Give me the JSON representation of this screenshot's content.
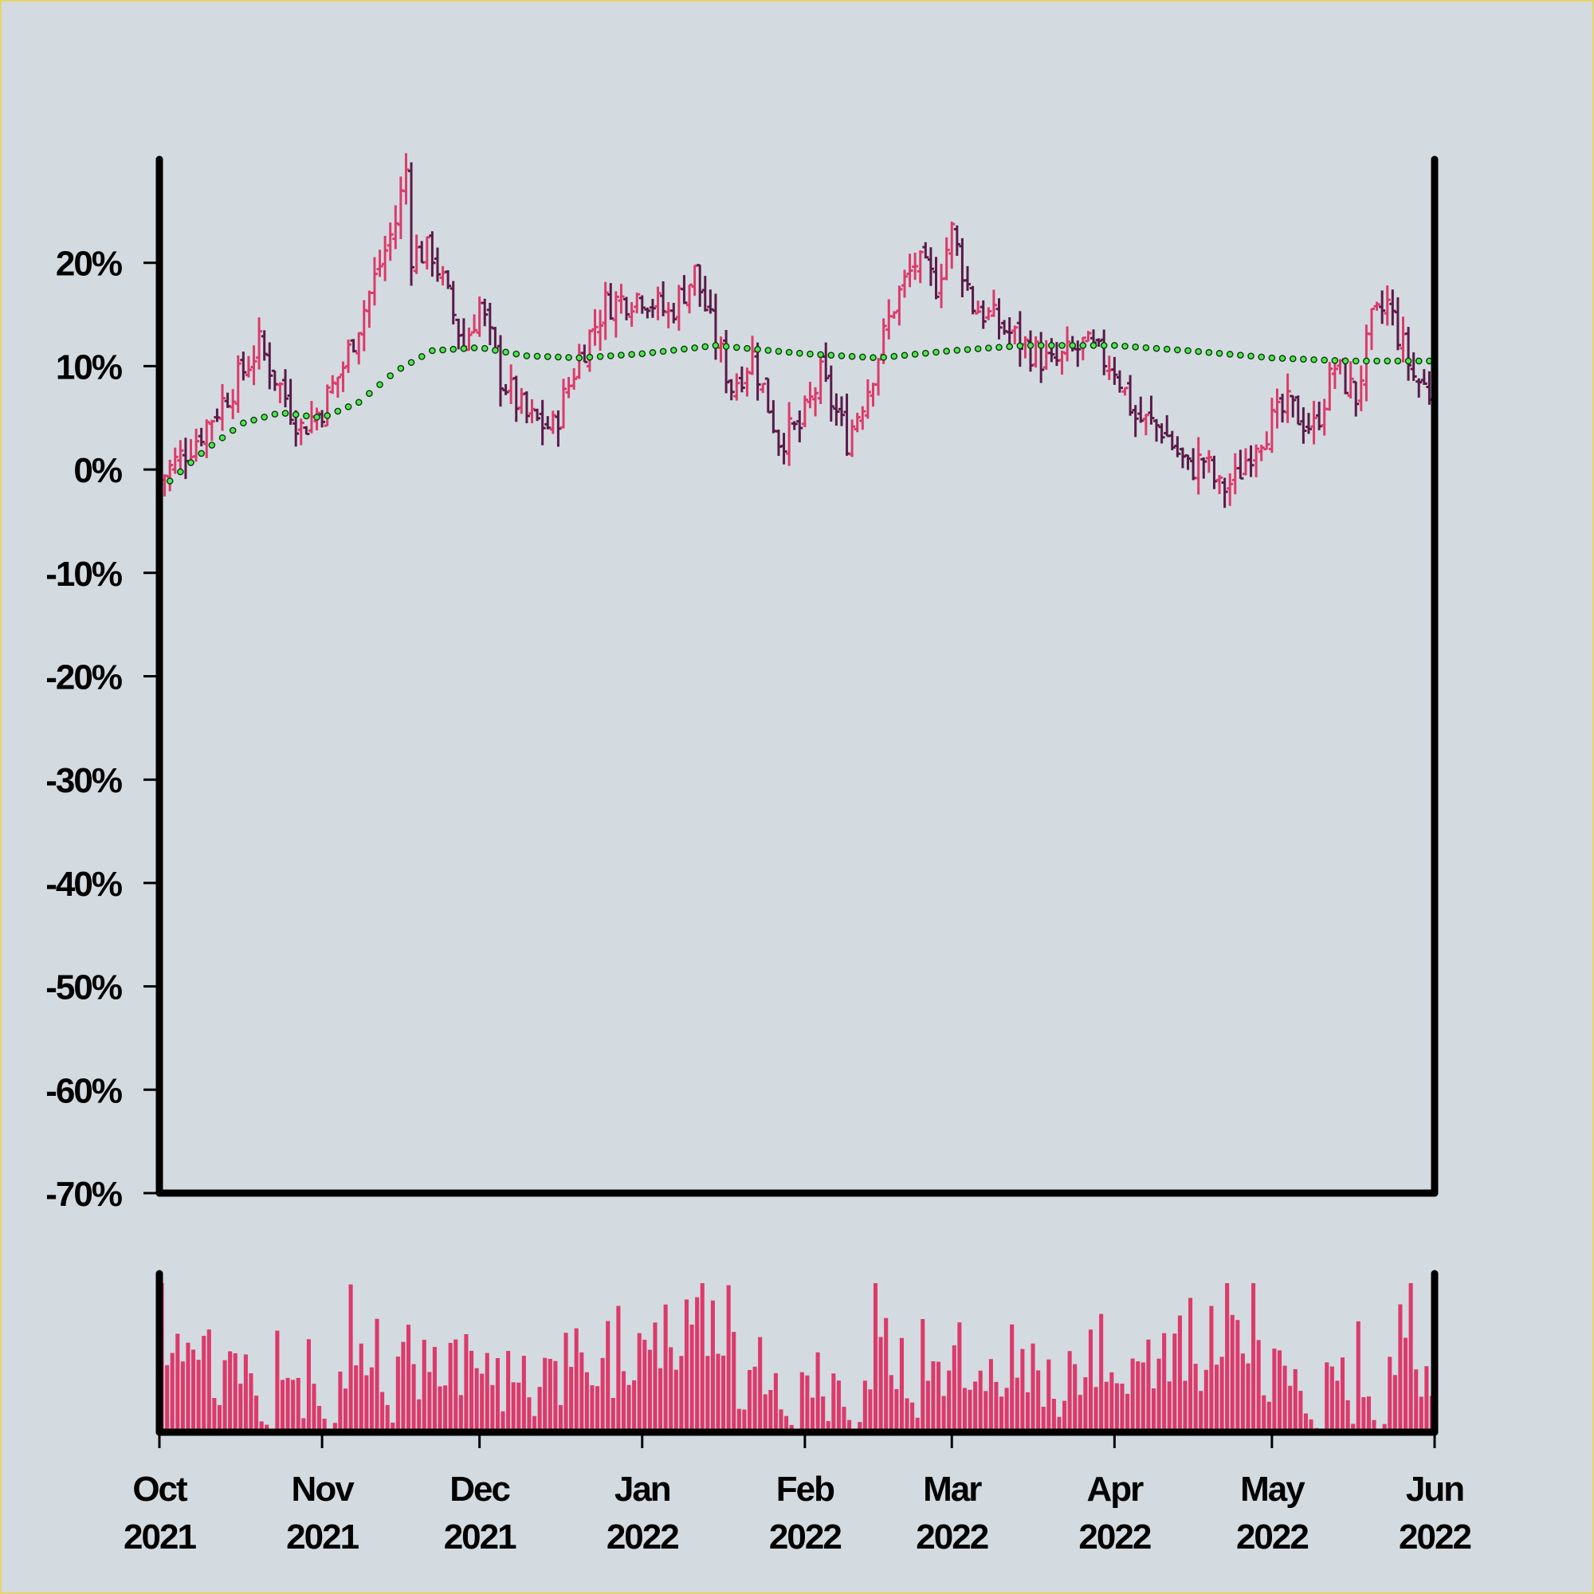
{
  "chart_data": {
    "type": "ohlc",
    "title": "",
    "xlabel": "",
    "ylabel": "",
    "x_range": [
      "2021-10-01",
      "2022-06-01"
    ],
    "y_range": [
      -70,
      30
    ],
    "y_ticks": [
      20,
      10,
      0,
      -10,
      -20,
      -30,
      -40,
      -50,
      -60,
      -70
    ],
    "y_tick_labels": [
      "20%",
      "10%",
      "0%",
      "-10%",
      "-20%",
      "-30%",
      "-40%",
      "-50%",
      "-60%",
      "-70%"
    ],
    "x_ticks": [
      {
        "date": "2021-10-01",
        "month": "Oct",
        "year": "2021"
      },
      {
        "date": "2021-11-01",
        "month": "Nov",
        "year": "2021"
      },
      {
        "date": "2021-12-01",
        "month": "Dec",
        "year": "2021"
      },
      {
        "date": "2022-01-01",
        "month": "Jan",
        "year": "2022"
      },
      {
        "date": "2022-02-01",
        "month": "Feb",
        "year": "2022"
      },
      {
        "date": "2022-03-01",
        "month": "Mar",
        "year": "2022"
      },
      {
        "date": "2022-04-01",
        "month": "Apr",
        "year": "2022"
      },
      {
        "date": "2022-05-01",
        "month": "May",
        "year": "2022"
      },
      {
        "date": "2022-06-01",
        "month": "Jun",
        "year": "2022"
      }
    ],
    "colors": {
      "up": "#dc3a6b",
      "down": "#5b1a48",
      "moving_average": "#52e552",
      "volume": "#dc3a6b",
      "axes": "#000000",
      "background": "#d3dbe0"
    },
    "close_path": [
      [
        "2021-10-01",
        -1
      ],
      [
        "2021-10-08",
        3
      ],
      [
        "2021-10-15",
        8
      ],
      [
        "2021-10-20",
        12
      ],
      [
        "2021-10-24",
        8
      ],
      [
        "2021-10-28",
        4
      ],
      [
        "2021-11-01",
        6
      ],
      [
        "2021-11-05",
        10
      ],
      [
        "2021-11-10",
        17
      ],
      [
        "2021-11-15",
        24
      ],
      [
        "2021-11-17",
        29
      ],
      [
        "2021-11-18",
        21
      ],
      [
        "2021-11-22",
        21
      ],
      [
        "2021-11-28",
        12
      ],
      [
        "2021-12-01",
        16
      ],
      [
        "2021-12-05",
        9
      ],
      [
        "2021-12-10",
        5
      ],
      [
        "2021-12-15",
        4
      ],
      [
        "2021-12-20",
        11
      ],
      [
        "2021-12-25",
        16
      ],
      [
        "2022-01-01",
        17
      ],
      [
        "2022-01-06",
        15
      ],
      [
        "2022-01-11",
        19
      ],
      [
        "2022-01-14",
        14
      ],
      [
        "2022-01-18",
        8
      ],
      [
        "2022-01-22",
        11
      ],
      [
        "2022-01-27",
        3
      ],
      [
        "2022-01-31",
        4
      ],
      [
        "2022-02-04",
        9
      ],
      [
        "2022-02-09",
        3
      ],
      [
        "2022-02-13",
        8
      ],
      [
        "2022-02-18",
        16
      ],
      [
        "2022-02-22",
        20
      ],
      [
        "2022-02-26",
        18
      ],
      [
        "2022-03-01",
        23
      ],
      [
        "2022-03-05",
        16
      ],
      [
        "2022-03-10",
        14
      ],
      [
        "2022-03-15",
        12
      ],
      [
        "2022-03-20",
        10
      ],
      [
        "2022-03-26",
        12
      ],
      [
        "2022-04-01",
        10
      ],
      [
        "2022-04-05",
        5
      ],
      [
        "2022-04-10",
        4
      ],
      [
        "2022-04-15",
        0
      ],
      [
        "2022-04-18",
        1
      ],
      [
        "2022-04-21",
        -2
      ],
      [
        "2022-04-24",
        -1
      ],
      [
        "2022-04-28",
        3
      ],
      [
        "2022-05-04",
        6
      ],
      [
        "2022-05-09",
        4
      ],
      [
        "2022-05-13",
        10
      ],
      [
        "2022-05-17",
        7
      ],
      [
        "2022-05-20",
        14
      ],
      [
        "2022-05-23",
        16
      ],
      [
        "2022-05-28",
        9
      ],
      [
        "2022-06-01",
        7
      ]
    ],
    "moving_average": [
      [
        "2021-10-01",
        -2
      ],
      [
        "2021-10-10",
        2
      ],
      [
        "2021-10-17",
        4.5
      ],
      [
        "2021-10-24",
        5.5
      ],
      [
        "2021-11-01",
        5
      ],
      [
        "2021-11-08",
        6.5
      ],
      [
        "2021-11-15",
        9.5
      ],
      [
        "2021-11-22",
        11.5
      ],
      [
        "2021-12-01",
        11.8
      ],
      [
        "2021-12-10",
        11
      ],
      [
        "2021-12-20",
        10.8
      ],
      [
        "2022-01-01",
        11.2
      ],
      [
        "2022-01-15",
        12
      ],
      [
        "2022-02-01",
        11.2
      ],
      [
        "2022-02-15",
        10.8
      ],
      [
        "2022-03-01",
        11.5
      ],
      [
        "2022-03-15",
        12
      ],
      [
        "2022-04-01",
        12
      ],
      [
        "2022-04-15",
        11.5
      ],
      [
        "2022-05-01",
        10.8
      ],
      [
        "2022-05-15",
        10.5
      ],
      [
        "2022-06-01",
        10.5
      ]
    ],
    "volume_relative": [
      0.95,
      0.6,
      0.85,
      1.0,
      0.75,
      0.88,
      0.72,
      0.82,
      0.95,
      0.6,
      0.25,
      0.2,
      0.7,
      0.45,
      0.55,
      0.3,
      0.5,
      0.35,
      0.2,
      0.1,
      0.05,
      0.0,
      0.55,
      0.4,
      0.3,
      0.45,
      0.35,
      0.1,
      0.6,
      0.3,
      0.2,
      0.1,
      0.0,
      0.1,
      0.6,
      0.5,
      0.85,
      0.7,
      0.95,
      0.55,
      0.4,
      0.75,
      0.3,
      0.2,
      0.1,
      0.75,
      0.55,
      0.6,
      0.45,
      0.4,
      0.7,
      0.5,
      0.6,
      0.45,
      0.3,
      0.5,
      0.7,
      0.4,
      0.75,
      0.5,
      0.35,
      0.4,
      0.6,
      0.3,
      0.45,
      0.25,
      0.5,
      0.4,
      0.3,
      0.55,
      0.2,
      0.15,
      0.35,
      0.5,
      0.45,
      0.4,
      0.3,
      0.6,
      0.55,
      0.7,
      0.5,
      0.6,
      0.3,
      0.55,
      0.45,
      0.7,
      0.4,
      0.85,
      0.65,
      0.45,
      0.55,
      0.9,
      0.5,
      0.55,
      0.75,
      0.4,
      0.85,
      0.6,
      0.35,
      0.55
    ]
  }
}
